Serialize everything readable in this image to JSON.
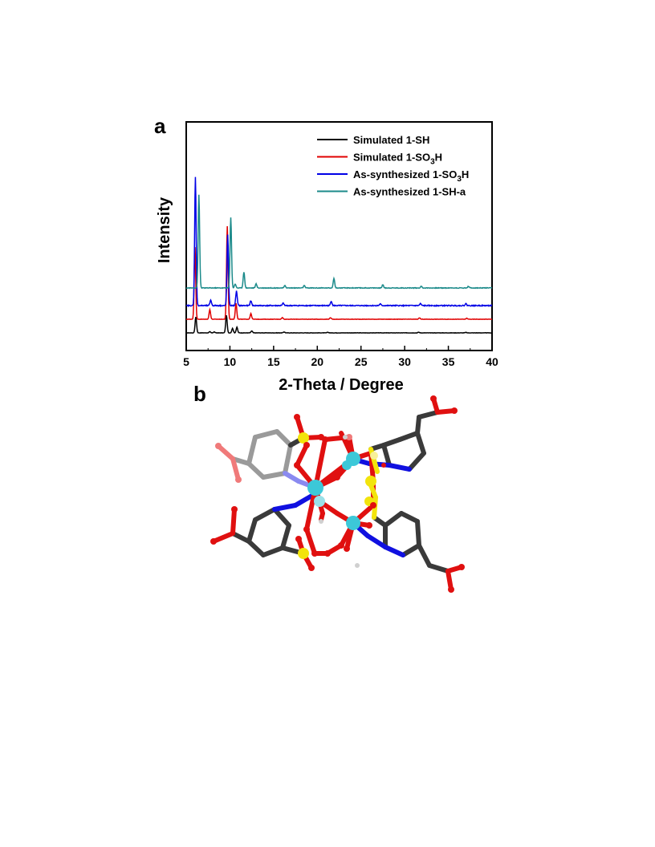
{
  "panel_a_label": "a",
  "panel_b_label": "b",
  "chart_data": {
    "type": "line",
    "title": "",
    "xlabel": "2-Theta / Degree",
    "ylabel": "Intensity",
    "xlim": [
      5,
      40
    ],
    "xticks": [
      5,
      10,
      15,
      20,
      25,
      30,
      35,
      40
    ],
    "yticks_shown": false,
    "grid": false,
    "legend_position": "top-right",
    "series": [
      {
        "name": "Simulated 1-SH",
        "color": "#000000",
        "baseline": 0.0,
        "noise": 0.02,
        "peaks": [
          [
            6.1,
            1.0
          ],
          [
            7.7,
            0.07
          ],
          [
            8.2,
            0.06
          ],
          [
            9.6,
            1.1
          ],
          [
            10.3,
            0.28
          ],
          [
            10.8,
            0.35
          ],
          [
            12.5,
            0.12
          ],
          [
            16.2,
            0.06
          ],
          [
            21.2,
            0.04
          ],
          [
            31.6,
            0.04
          ],
          [
            37.0,
            0.03
          ]
        ]
      },
      {
        "name": "Simulated 1-SO3H",
        "name_parts": [
          "Simulated 1-SO",
          "3",
          "H"
        ],
        "color": "#e00000",
        "baseline": 0.85,
        "noise": 0.02,
        "peaks": [
          [
            6.0,
            4.5
          ],
          [
            7.7,
            0.6
          ],
          [
            9.7,
            5.8
          ],
          [
            10.7,
            1.0
          ],
          [
            12.4,
            0.35
          ],
          [
            16.0,
            0.1
          ],
          [
            21.5,
            0.1
          ],
          [
            31.7,
            0.08
          ],
          [
            37.1,
            0.06
          ]
        ]
      },
      {
        "name": "As-synthesized 1-SO3H",
        "name_parts": [
          "As-synthesized 1-SO",
          "3",
          "H"
        ],
        "color": "#0000e6",
        "baseline": 1.7,
        "noise": 0.06,
        "peaks": [
          [
            6.05,
            8.0
          ],
          [
            7.8,
            0.35
          ],
          [
            9.75,
            4.4
          ],
          [
            10.75,
            0.9
          ],
          [
            12.4,
            0.3
          ],
          [
            16.1,
            0.15
          ],
          [
            21.6,
            0.28
          ],
          [
            27.2,
            0.1
          ],
          [
            31.8,
            0.12
          ],
          [
            37.0,
            0.12
          ]
        ]
      },
      {
        "name": "As-synthesized 1-SH-a",
        "color": "#1b8a8a",
        "baseline": 2.8,
        "noise": 0.04,
        "peaks": [
          [
            6.45,
            5.8
          ],
          [
            10.1,
            4.4
          ],
          [
            10.6,
            0.25
          ],
          [
            11.6,
            1.0
          ],
          [
            13.0,
            0.25
          ],
          [
            16.3,
            0.15
          ],
          [
            18.5,
            0.15
          ],
          [
            21.9,
            0.6
          ],
          [
            27.5,
            0.2
          ],
          [
            31.9,
            0.1
          ],
          [
            37.3,
            0.1
          ]
        ]
      }
    ]
  },
  "molecule": {
    "colors": {
      "carbon": "#3a3a3a",
      "carbon_faded": "#9a9a9a",
      "oxygen": "#e01010",
      "oxygen_faded": "#f07a7a",
      "nitrogen": "#1010e0",
      "nitrogen_faded": "#8a8af0",
      "sulfur": "#f2e40c",
      "sulfur_faded": "#f8f098",
      "metal": "#3cc8d8",
      "metal_faded": "#9ae0e8",
      "hydrogen": "#d0d0d0"
    }
  }
}
